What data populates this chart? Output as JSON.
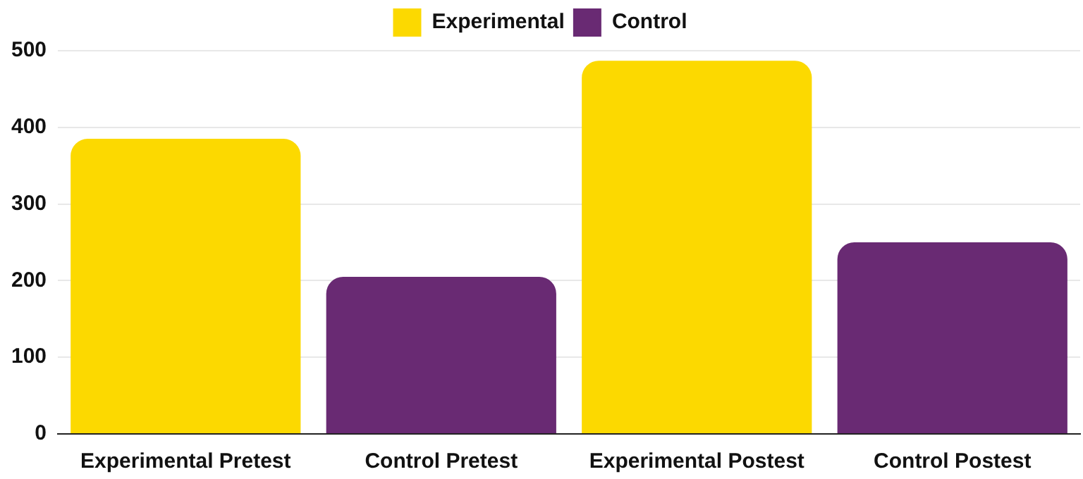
{
  "chart_data": {
    "type": "bar",
    "categories": [
      "Experimental Pretest",
      "Control Pretest",
      "Experimental Postest",
      "Control Postest"
    ],
    "series": [
      {
        "name": "Experimental",
        "color": "#fcd900",
        "values": [
          385,
          null,
          487,
          null
        ]
      },
      {
        "name": "Control",
        "color": "#692a73",
        "values": [
          null,
          205,
          null,
          250
        ]
      }
    ],
    "ylim": [
      0,
      500
    ],
    "yticks": [
      0,
      100,
      200,
      300,
      400,
      500
    ],
    "grid": "y",
    "legend": "top"
  }
}
